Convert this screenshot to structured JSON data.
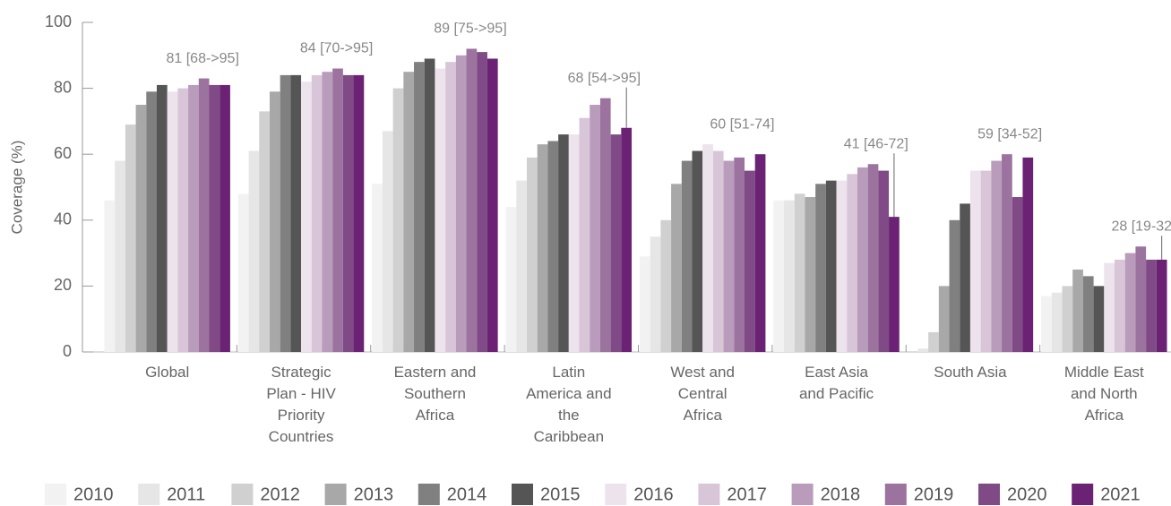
{
  "chart_data": {
    "type": "bar",
    "y_label": "Coverage (%)",
    "categories": [
      "Global",
      "Strategic Plan - HIV Priority Countries",
      "Eastern and Southern Africa",
      "Latin America and the Caribbean",
      "West and Central Africa",
      "East Asia and Pacific",
      "South Asia",
      "Middle East and North Africa"
    ],
    "annotations": [
      "81 [68->95]",
      "84 [70->95]",
      "89 [75->95]",
      "68 [54->95]",
      "60 [51-74]",
      "41 [46-72]",
      "59 [34-52]",
      "28 [19-32]"
    ],
    "ylim": [
      0,
      100
    ],
    "yticks": [
      0,
      20,
      40,
      60,
      80,
      100
    ],
    "series": [
      {
        "name": "2010",
        "color": "#f2f2f2",
        "values": [
          46,
          48,
          51,
          44,
          29,
          46,
          0,
          17
        ]
      },
      {
        "name": "2011",
        "color": "#e6e6e6",
        "values": [
          58,
          61,
          67,
          52,
          35,
          46,
          1,
          18
        ]
      },
      {
        "name": "2012",
        "color": "#d0d0d0",
        "values": [
          69,
          73,
          80,
          59,
          40,
          48,
          6,
          20
        ]
      },
      {
        "name": "2013",
        "color": "#a8a8a8",
        "values": [
          75,
          79,
          85,
          63,
          51,
          47,
          20,
          25
        ]
      },
      {
        "name": "2014",
        "color": "#808080",
        "values": [
          79,
          84,
          88,
          64,
          58,
          51,
          40,
          23
        ]
      },
      {
        "name": "2015",
        "color": "#555555",
        "values": [
          81,
          84,
          89,
          66,
          61,
          52,
          45,
          20
        ]
      },
      {
        "name": "2016",
        "color": "#ece3ec",
        "values": [
          79,
          82,
          86,
          66,
          63,
          52,
          55,
          27
        ]
      },
      {
        "name": "2017",
        "color": "#d8c6d8",
        "values": [
          80,
          84,
          88,
          71,
          61,
          54,
          55,
          28
        ]
      },
      {
        "name": "2018",
        "color": "#b99bbb",
        "values": [
          81,
          85,
          90,
          75,
          58,
          56,
          58,
          30
        ]
      },
      {
        "name": "2019",
        "color": "#9c729f",
        "values": [
          83,
          86,
          92,
          77,
          59,
          57,
          60,
          32
        ]
      },
      {
        "name": "2020",
        "color": "#7f4a85",
        "values": [
          81,
          84,
          91,
          66,
          55,
          55,
          47,
          28
        ]
      },
      {
        "name": "2021",
        "color": "#6b2274",
        "values": [
          81,
          84,
          89,
          68,
          60,
          41,
          59,
          28
        ]
      }
    ]
  }
}
